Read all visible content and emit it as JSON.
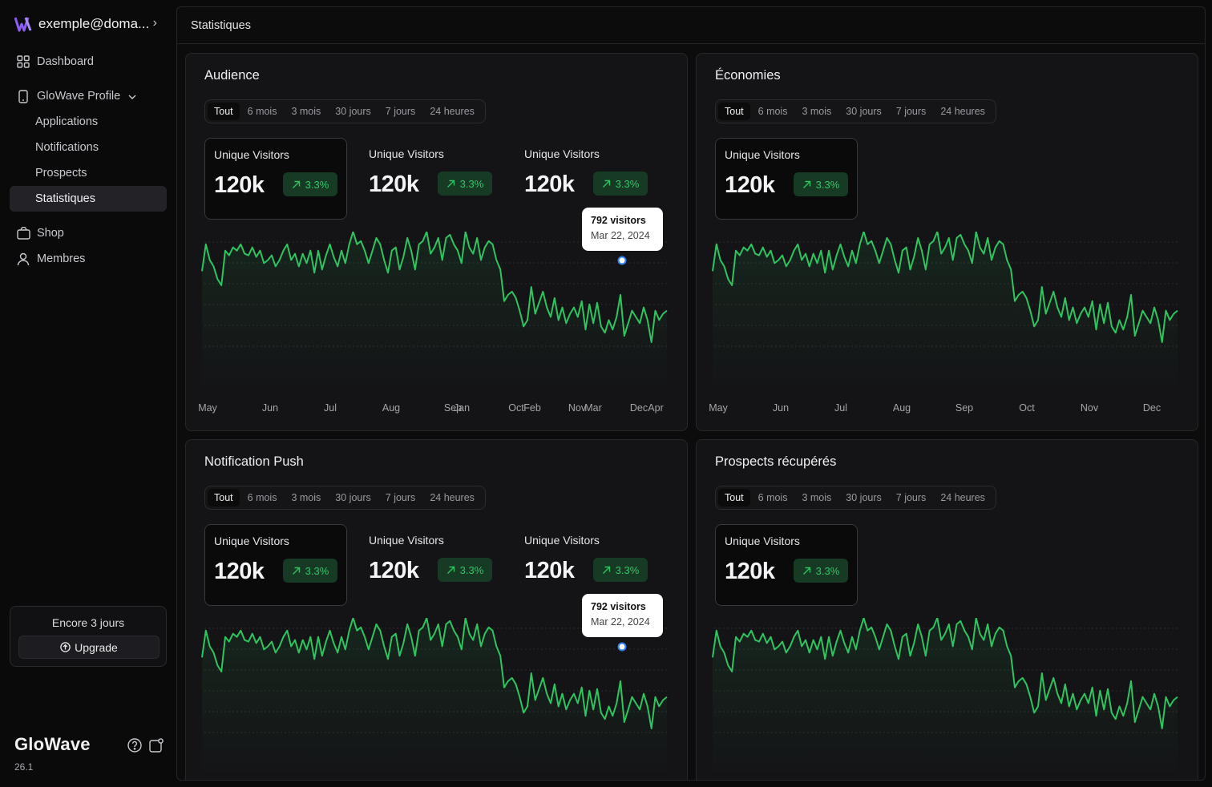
{
  "account": {
    "email": "exemple@doma..."
  },
  "nav": {
    "dashboard": "Dashboard",
    "profile": "GloWave Profile",
    "applications": "Applications",
    "notifications": "Notifications",
    "prospects": "Prospects",
    "statistiques": "Statistiques",
    "shop": "Shop",
    "membres": "Membres"
  },
  "trial": {
    "text": "Encore 3 jours",
    "upgrade": "Upgrade"
  },
  "brand": {
    "name": "GloWave",
    "version": "26.1"
  },
  "page": {
    "title": "Statistiques"
  },
  "tabs": [
    "Tout",
    "6 mois",
    "3 mois",
    "30 jours",
    "7 jours",
    "24 heures"
  ],
  "stat": {
    "label": "Unique Visitors",
    "value": "120k",
    "change": "3.3%"
  },
  "tooltip": {
    "value": "792 visitors",
    "date": "Mar 22, 2024"
  },
  "colors": {
    "accent": "#2fc45f",
    "highlight": "#2f7cf6",
    "badge_bg": "#163a24"
  },
  "cards": [
    {
      "title": "Audience",
      "stat_count": 3,
      "tooltip": true,
      "x_labels": [
        "May",
        "Jun",
        "Jul",
        "Aug",
        "Sep",
        "Jan",
        "Oct",
        "Feb",
        "Nov",
        "Mar",
        "Dec",
        "Apr"
      ]
    },
    {
      "title": "Économies",
      "stat_count": 1,
      "tooltip": false,
      "x_labels": [
        "May",
        "Jun",
        "Jul",
        "Aug",
        "Sep",
        "Oct",
        "Nov",
        "Dec"
      ]
    },
    {
      "title": "Notification Push",
      "stat_count": 3,
      "tooltip": true,
      "x_labels": []
    },
    {
      "title": "Prospects récupérés",
      "stat_count": 1,
      "tooltip": false,
      "x_labels": []
    }
  ],
  "chart_data": {
    "type": "line",
    "series": [
      {
        "values": [
          45,
          62,
          52,
          48,
          40,
          36,
          58,
          55,
          60,
          58,
          62,
          56,
          55,
          60,
          54,
          58,
          50,
          52,
          55,
          48,
          52,
          58,
          62,
          52,
          56,
          48,
          56,
          50,
          58,
          44,
          58,
          46,
          55,
          62,
          54,
          48,
          58,
          50,
          62,
          70,
          62,
          64,
          58,
          50,
          58,
          66,
          62,
          52,
          44,
          58,
          60,
          46,
          54,
          66,
          58,
          46,
          62,
          64,
          70,
          56,
          60,
          66,
          52,
          66,
          68,
          62,
          58,
          50,
          70,
          60,
          56,
          66,
          52,
          60,
          64,
          62,
          52,
          46,
          26,
          30,
          32,
          28,
          20,
          10,
          14,
          35,
          18,
          25,
          32,
          22,
          16,
          28,
          14,
          22,
          12,
          18,
          22,
          16,
          26,
          8,
          24,
          12,
          25,
          10,
          6,
          14,
          8,
          16,
          30,
          4,
          12,
          20,
          16,
          12,
          22,
          14,
          0,
          20,
          14,
          18,
          20
        ]
      }
    ],
    "tooltip_point": {
      "x": "Mar 22, 2024",
      "y": 792
    }
  }
}
